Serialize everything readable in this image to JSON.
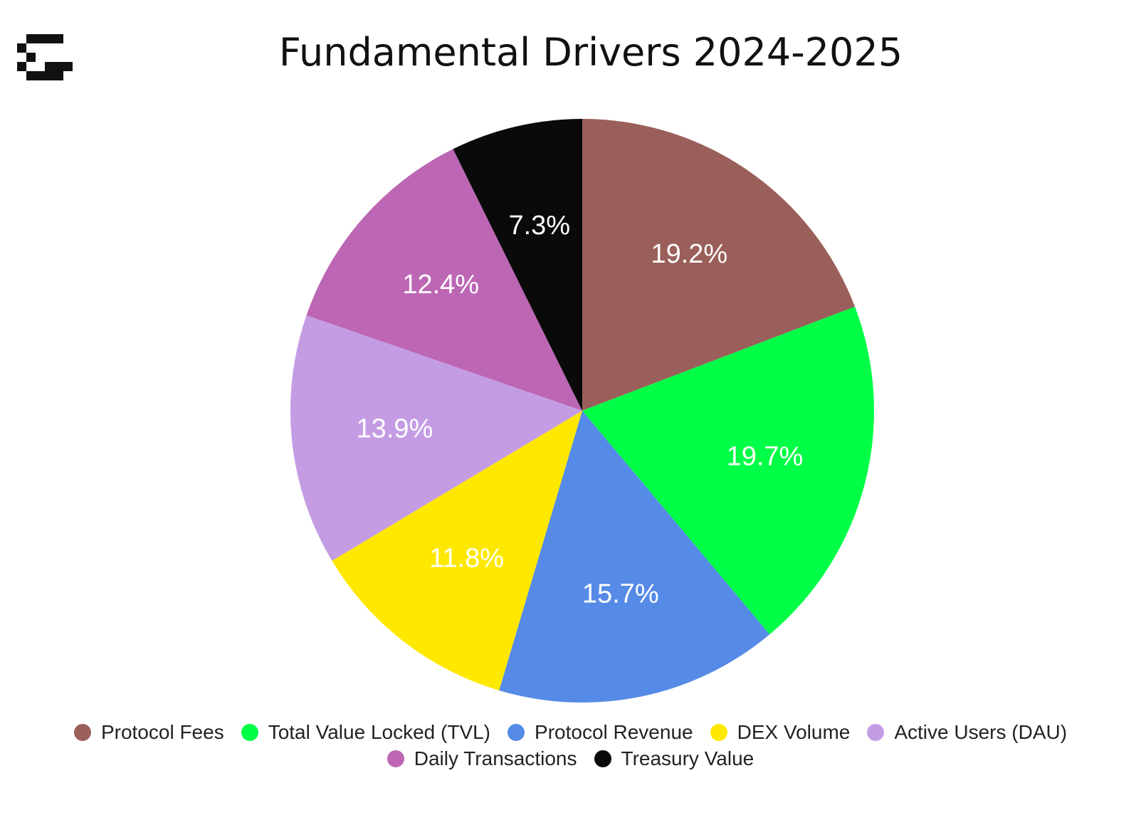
{
  "title": "Fundamental Drivers 2024-2025",
  "logo": {
    "icon": "pixel-g-logo-icon"
  },
  "chart_data": {
    "type": "pie",
    "title": "Fundamental Drivers 2024-2025",
    "legend_position": "bottom",
    "slices": [
      {
        "name": "Protocol Fees",
        "value": 19.2,
        "label": "19.2%",
        "color": "#9A5F5A"
      },
      {
        "name": "Total Value Locked (TVL)",
        "value": 19.7,
        "label": "19.7%",
        "color": "#00FF46"
      },
      {
        "name": "Protocol Revenue",
        "value": 15.7,
        "label": "15.7%",
        "color": "#558AE6"
      },
      {
        "name": "DEX Volume",
        "value": 11.8,
        "label": "11.8%",
        "color": "#FFE800"
      },
      {
        "name": "Active Users (DAU)",
        "value": 13.9,
        "label": "13.9%",
        "color": "#C49CE4"
      },
      {
        "name": "Daily Transactions",
        "value": 12.4,
        "label": "12.4%",
        "color": "#BC66B4"
      },
      {
        "name": "Treasury Value",
        "value": 7.3,
        "label": "7.3%",
        "color": "#0A0A0A"
      }
    ]
  }
}
